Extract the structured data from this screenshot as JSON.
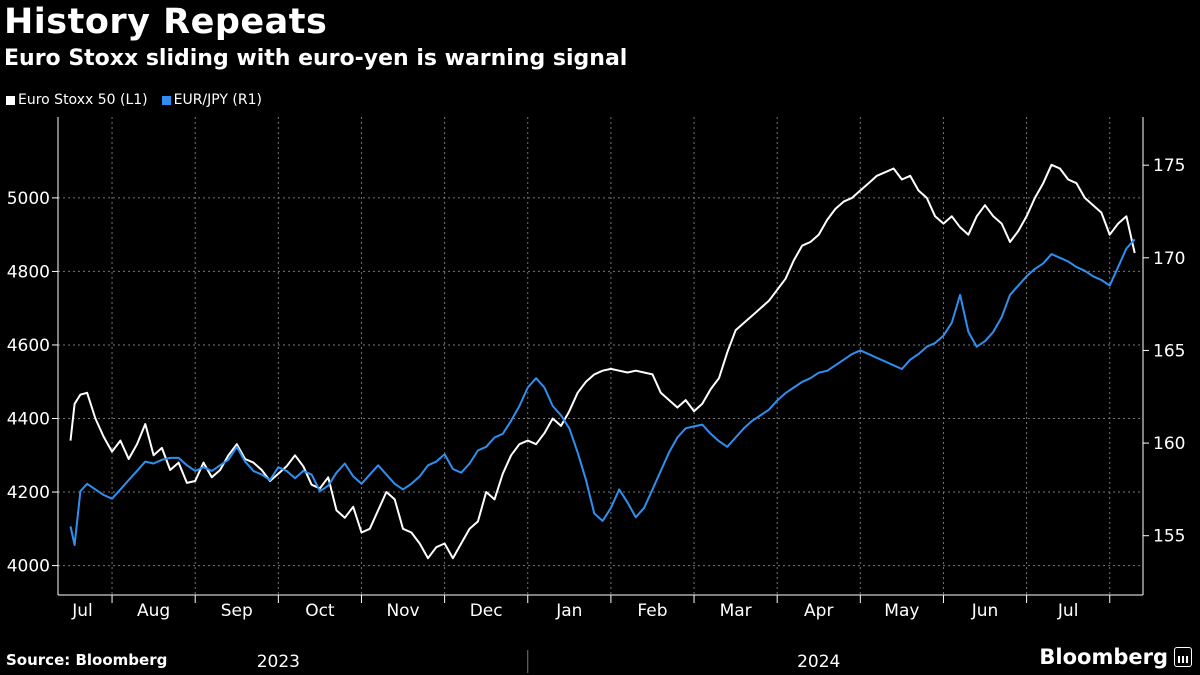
{
  "header": {
    "title": "History Repeats",
    "subtitle": "Euro Stoxx sliding with euro-yen is warning signal"
  },
  "legend": [
    {
      "label": "Euro Stoxx 50 (L1)",
      "color": "#ffffff"
    },
    {
      "label": "EUR/JPY (R1)",
      "color": "#2f8ff0"
    }
  ],
  "footer": {
    "source": "Source: Bloomberg",
    "brand": "Bloomberg",
    "brand_icon": "bloomberg-terminal-icon"
  },
  "chart_data": {
    "type": "line",
    "title": "History Repeats",
    "x_months": [
      "Jul",
      "Aug",
      "Sep",
      "Oct",
      "Nov",
      "Dec",
      "Jan",
      "Feb",
      "Mar",
      "Apr",
      "May",
      "Jun",
      "Jul"
    ],
    "x_years": [
      "2023",
      "2024"
    ],
    "x_range": [
      -0.15,
      12.9
    ],
    "left_axis": {
      "ticks": [
        4000,
        4200,
        4400,
        4600,
        4800,
        5000
      ],
      "ylim": [
        3920,
        5220
      ]
    },
    "right_axis": {
      "ticks": [
        155,
        160,
        165,
        170,
        175
      ],
      "ylim": [
        151.8,
        177.6
      ]
    },
    "gridlines": true,
    "series": [
      {
        "name": "Euro Stoxx 50 (L1)",
        "axis": "left",
        "color": "#ffffff",
        "points": [
          [
            0.0,
            4340
          ],
          [
            0.05,
            4440
          ],
          [
            0.12,
            4465
          ],
          [
            0.2,
            4470
          ],
          [
            0.3,
            4400
          ],
          [
            0.4,
            4350
          ],
          [
            0.5,
            4310
          ],
          [
            0.6,
            4340
          ],
          [
            0.7,
            4290
          ],
          [
            0.8,
            4330
          ],
          [
            0.9,
            4385
          ],
          [
            1.0,
            4300
          ],
          [
            1.1,
            4320
          ],
          [
            1.2,
            4260
          ],
          [
            1.3,
            4280
          ],
          [
            1.4,
            4225
          ],
          [
            1.5,
            4230
          ],
          [
            1.6,
            4280
          ],
          [
            1.7,
            4240
          ],
          [
            1.8,
            4260
          ],
          [
            1.9,
            4300
          ],
          [
            2.0,
            4330
          ],
          [
            2.1,
            4290
          ],
          [
            2.2,
            4280
          ],
          [
            2.3,
            4260
          ],
          [
            2.4,
            4230
          ],
          [
            2.5,
            4250
          ],
          [
            2.6,
            4270
          ],
          [
            2.7,
            4300
          ],
          [
            2.8,
            4270
          ],
          [
            2.9,
            4220
          ],
          [
            3.0,
            4210
          ],
          [
            3.1,
            4240
          ],
          [
            3.2,
            4150
          ],
          [
            3.3,
            4130
          ],
          [
            3.4,
            4160
          ],
          [
            3.5,
            4090
          ],
          [
            3.6,
            4100
          ],
          [
            3.7,
            4150
          ],
          [
            3.8,
            4200
          ],
          [
            3.9,
            4180
          ],
          [
            4.0,
            4100
          ],
          [
            4.1,
            4090
          ],
          [
            4.2,
            4060
          ],
          [
            4.3,
            4020
          ],
          [
            4.4,
            4050
          ],
          [
            4.5,
            4060
          ],
          [
            4.6,
            4020
          ],
          [
            4.7,
            4060
          ],
          [
            4.8,
            4100
          ],
          [
            4.9,
            4120
          ],
          [
            5.0,
            4200
          ],
          [
            5.1,
            4180
          ],
          [
            5.2,
            4250
          ],
          [
            5.3,
            4300
          ],
          [
            5.4,
            4330
          ],
          [
            5.5,
            4340
          ],
          [
            5.6,
            4330
          ],
          [
            5.7,
            4360
          ],
          [
            5.8,
            4400
          ],
          [
            5.9,
            4380
          ],
          [
            6.0,
            4420
          ],
          [
            6.1,
            4470
          ],
          [
            6.2,
            4500
          ],
          [
            6.3,
            4520
          ],
          [
            6.4,
            4530
          ],
          [
            6.5,
            4535
          ],
          [
            6.6,
            4530
          ],
          [
            6.7,
            4525
          ],
          [
            6.8,
            4530
          ],
          [
            6.9,
            4525
          ],
          [
            7.0,
            4520
          ],
          [
            7.1,
            4470
          ],
          [
            7.2,
            4450
          ],
          [
            7.3,
            4430
          ],
          [
            7.4,
            4450
          ],
          [
            7.5,
            4420
          ],
          [
            7.6,
            4440
          ],
          [
            7.7,
            4480
          ],
          [
            7.8,
            4510
          ],
          [
            7.9,
            4580
          ],
          [
            8.0,
            4640
          ],
          [
            8.1,
            4660
          ],
          [
            8.2,
            4680
          ],
          [
            8.3,
            4700
          ],
          [
            8.4,
            4720
          ],
          [
            8.5,
            4750
          ],
          [
            8.6,
            4780
          ],
          [
            8.7,
            4830
          ],
          [
            8.8,
            4870
          ],
          [
            8.9,
            4880
          ],
          [
            9.0,
            4900
          ],
          [
            9.1,
            4940
          ],
          [
            9.2,
            4970
          ],
          [
            9.3,
            4990
          ],
          [
            9.4,
            5000
          ],
          [
            9.5,
            5020
          ],
          [
            9.6,
            5040
          ],
          [
            9.7,
            5060
          ],
          [
            9.8,
            5070
          ],
          [
            9.9,
            5080
          ],
          [
            10.0,
            5050
          ],
          [
            10.1,
            5060
          ],
          [
            10.2,
            5020
          ],
          [
            10.3,
            5000
          ],
          [
            10.4,
            4950
          ],
          [
            10.5,
            4930
          ],
          [
            10.6,
            4950
          ],
          [
            10.7,
            4920
          ],
          [
            10.8,
            4900
          ],
          [
            10.9,
            4950
          ],
          [
            11.0,
            4980
          ],
          [
            11.1,
            4950
          ],
          [
            11.2,
            4930
          ],
          [
            11.3,
            4880
          ],
          [
            11.4,
            4910
          ],
          [
            11.5,
            4950
          ],
          [
            11.6,
            5000
          ],
          [
            11.7,
            5040
          ],
          [
            11.8,
            5090
          ],
          [
            11.9,
            5080
          ],
          [
            12.0,
            5050
          ],
          [
            12.1,
            5040
          ],
          [
            12.2,
            5000
          ],
          [
            12.3,
            4980
          ],
          [
            12.4,
            4960
          ],
          [
            12.5,
            4900
          ],
          [
            12.6,
            4930
          ],
          [
            12.7,
            4950
          ],
          [
            12.8,
            4850
          ]
        ]
      },
      {
        "name": "EUR/JPY (R1)",
        "axis": "right",
        "color": "#2f8ff0",
        "points": [
          [
            0.0,
            155.5
          ],
          [
            0.05,
            154.5
          ],
          [
            0.12,
            157.4
          ],
          [
            0.2,
            157.8
          ],
          [
            0.3,
            157.5
          ],
          [
            0.4,
            157.2
          ],
          [
            0.5,
            157.0
          ],
          [
            0.6,
            157.5
          ],
          [
            0.7,
            158.0
          ],
          [
            0.8,
            158.5
          ],
          [
            0.9,
            159.0
          ],
          [
            1.0,
            158.9
          ],
          [
            1.1,
            159.1
          ],
          [
            1.2,
            159.2
          ],
          [
            1.3,
            159.2
          ],
          [
            1.4,
            158.8
          ],
          [
            1.5,
            158.5
          ],
          [
            1.6,
            158.7
          ],
          [
            1.7,
            158.5
          ],
          [
            1.8,
            158.8
          ],
          [
            1.9,
            159.1
          ],
          [
            2.0,
            159.8
          ],
          [
            2.1,
            159.0
          ],
          [
            2.2,
            158.5
          ],
          [
            2.3,
            158.3
          ],
          [
            2.4,
            158.0
          ],
          [
            2.5,
            158.7
          ],
          [
            2.6,
            158.5
          ],
          [
            2.7,
            158.1
          ],
          [
            2.8,
            158.5
          ],
          [
            2.9,
            158.3
          ],
          [
            3.0,
            157.4
          ],
          [
            3.1,
            157.7
          ],
          [
            3.2,
            158.4
          ],
          [
            3.3,
            158.9
          ],
          [
            3.4,
            158.2
          ],
          [
            3.5,
            157.8
          ],
          [
            3.6,
            158.3
          ],
          [
            3.7,
            158.8
          ],
          [
            3.8,
            158.3
          ],
          [
            3.9,
            157.8
          ],
          [
            4.0,
            157.5
          ],
          [
            4.1,
            157.8
          ],
          [
            4.2,
            158.2
          ],
          [
            4.3,
            158.8
          ],
          [
            4.4,
            159.0
          ],
          [
            4.5,
            159.4
          ],
          [
            4.6,
            158.6
          ],
          [
            4.7,
            158.4
          ],
          [
            4.8,
            158.9
          ],
          [
            4.9,
            159.6
          ],
          [
            5.0,
            159.8
          ],
          [
            5.1,
            160.3
          ],
          [
            5.2,
            160.5
          ],
          [
            5.3,
            161.2
          ],
          [
            5.4,
            162.0
          ],
          [
            5.5,
            163.0
          ],
          [
            5.6,
            163.5
          ],
          [
            5.7,
            163.0
          ],
          [
            5.8,
            162.0
          ],
          [
            5.9,
            161.5
          ],
          [
            6.0,
            160.8
          ],
          [
            6.1,
            159.5
          ],
          [
            6.2,
            158.0
          ],
          [
            6.3,
            156.2
          ],
          [
            6.4,
            155.8
          ],
          [
            6.5,
            156.5
          ],
          [
            6.6,
            157.5
          ],
          [
            6.7,
            156.8
          ],
          [
            6.8,
            156.0
          ],
          [
            6.9,
            156.5
          ],
          [
            7.0,
            157.5
          ],
          [
            7.1,
            158.5
          ],
          [
            7.2,
            159.5
          ],
          [
            7.3,
            160.3
          ],
          [
            7.4,
            160.8
          ],
          [
            7.5,
            160.9
          ],
          [
            7.6,
            161.0
          ],
          [
            7.7,
            160.5
          ],
          [
            7.8,
            160.1
          ],
          [
            7.9,
            159.8
          ],
          [
            8.0,
            160.3
          ],
          [
            8.1,
            160.8
          ],
          [
            8.2,
            161.2
          ],
          [
            8.3,
            161.5
          ],
          [
            8.4,
            161.8
          ],
          [
            8.5,
            162.3
          ],
          [
            8.6,
            162.7
          ],
          [
            8.7,
            163.0
          ],
          [
            8.8,
            163.3
          ],
          [
            8.9,
            163.5
          ],
          [
            9.0,
            163.8
          ],
          [
            9.1,
            163.9
          ],
          [
            9.2,
            164.2
          ],
          [
            9.3,
            164.5
          ],
          [
            9.4,
            164.8
          ],
          [
            9.5,
            165.0
          ],
          [
            9.6,
            164.8
          ],
          [
            9.7,
            164.6
          ],
          [
            9.8,
            164.4
          ],
          [
            9.9,
            164.2
          ],
          [
            10.0,
            164.0
          ],
          [
            10.1,
            164.5
          ],
          [
            10.2,
            164.8
          ],
          [
            10.3,
            165.2
          ],
          [
            10.4,
            165.4
          ],
          [
            10.5,
            165.8
          ],
          [
            10.6,
            166.5
          ],
          [
            10.7,
            168.0
          ],
          [
            10.8,
            166.0
          ],
          [
            10.9,
            165.2
          ],
          [
            11.0,
            165.5
          ],
          [
            11.1,
            166.0
          ],
          [
            11.2,
            166.8
          ],
          [
            11.3,
            168.0
          ],
          [
            11.4,
            168.5
          ],
          [
            11.5,
            169.0
          ],
          [
            11.6,
            169.4
          ],
          [
            11.7,
            169.7
          ],
          [
            11.8,
            170.2
          ],
          [
            11.9,
            170.0
          ],
          [
            12.0,
            169.8
          ],
          [
            12.1,
            169.5
          ],
          [
            12.2,
            169.3
          ],
          [
            12.3,
            169.0
          ],
          [
            12.4,
            168.8
          ],
          [
            12.5,
            168.5
          ],
          [
            12.6,
            169.5
          ],
          [
            12.7,
            170.5
          ],
          [
            12.8,
            171.0
          ]
        ]
      }
    ]
  }
}
